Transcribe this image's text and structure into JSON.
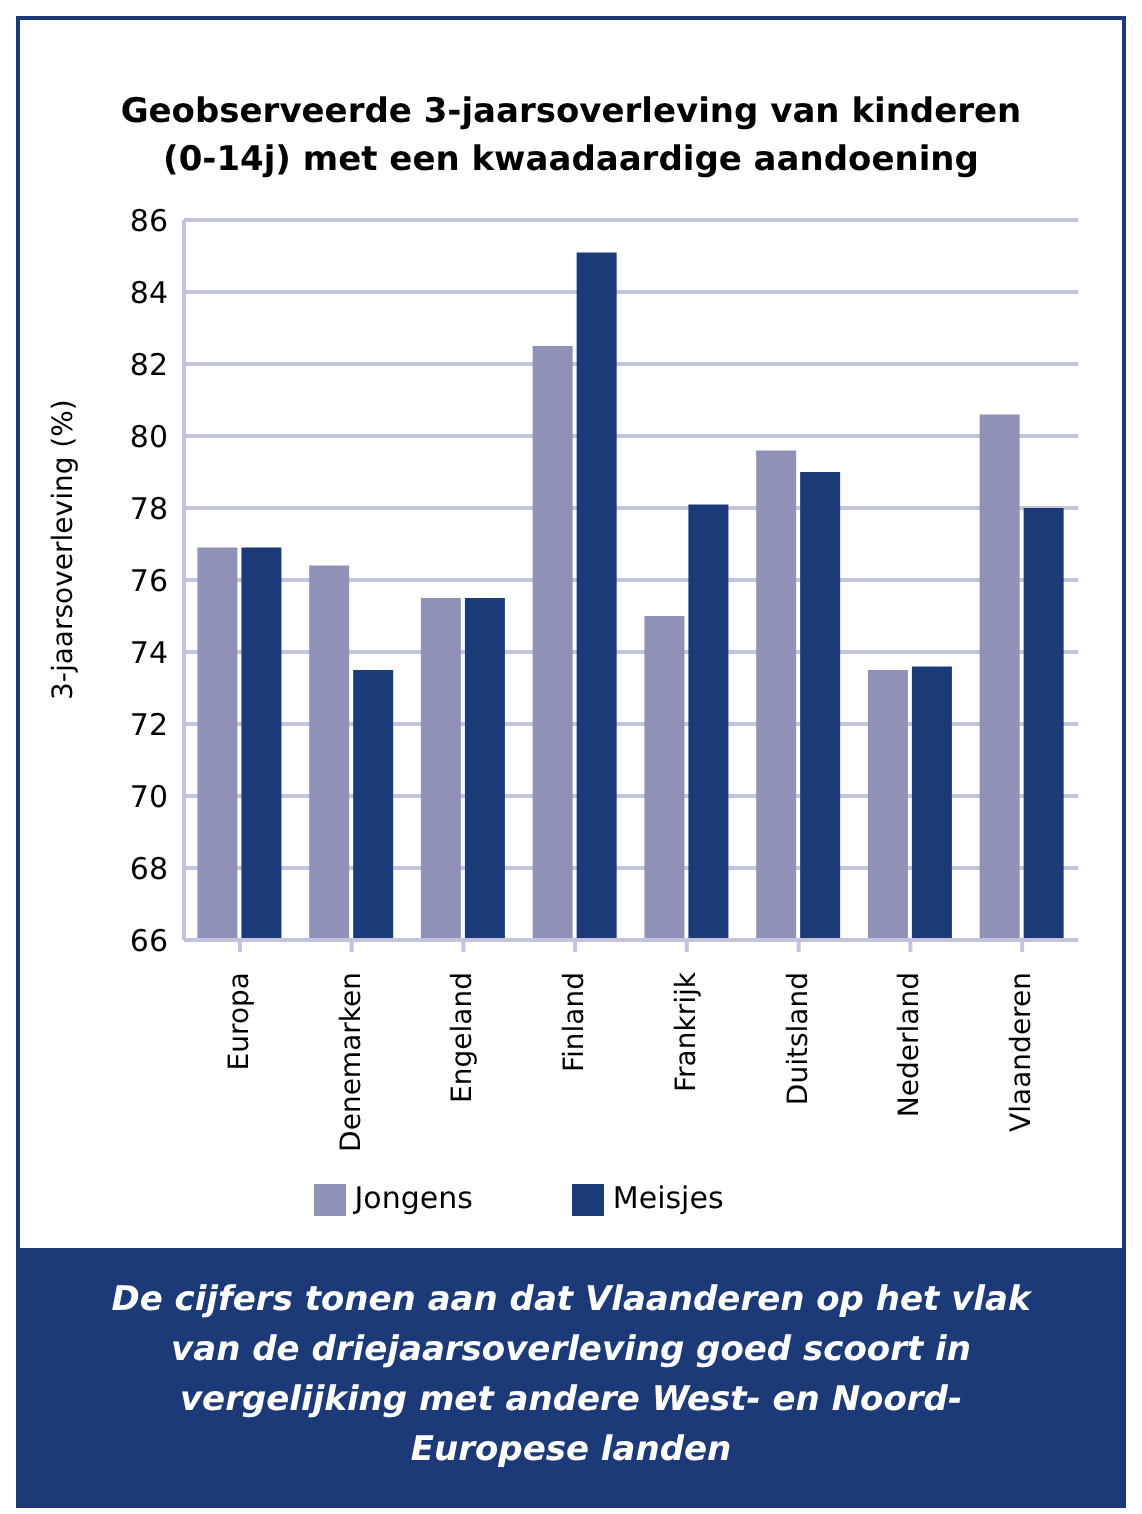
{
  "chart_data": {
    "type": "bar",
    "title": "Geobserveerde 3-jaarsoverleving van kinderen (0-14j) met een kwaadaardige aandoening",
    "ylabel": "3-jaarsoverleving (%)",
    "categories": [
      "Europa",
      "Denemarken",
      "Engeland",
      "Finland",
      "Frankrijk",
      "Duitsland",
      "Nederland",
      "Vlaanderen"
    ],
    "series": [
      {
        "name": "Jongens",
        "color": "#8f92b6",
        "values": [
          76.9,
          76.4,
          75.5,
          82.5,
          75.0,
          79.6,
          73.5,
          80.6
        ]
      },
      {
        "name": "Meisjes",
        "color": "#1a3a78",
        "values": [
          76.9,
          73.5,
          75.5,
          85.1,
          78.1,
          79.0,
          73.6,
          78.0
        ]
      }
    ],
    "ylim": [
      66,
      86
    ],
    "yticks": [
      66,
      68,
      70,
      72,
      74,
      76,
      78,
      80,
      82,
      84,
      86
    ],
    "grid": "y",
    "legend": "bottom",
    "annotations": [
      "De cijfers tonen aan dat Vlaanderen op het vlak van de driejaarsoverleving goed scoort in vergelijking met andere West- en Noord-Europese landen"
    ]
  }
}
